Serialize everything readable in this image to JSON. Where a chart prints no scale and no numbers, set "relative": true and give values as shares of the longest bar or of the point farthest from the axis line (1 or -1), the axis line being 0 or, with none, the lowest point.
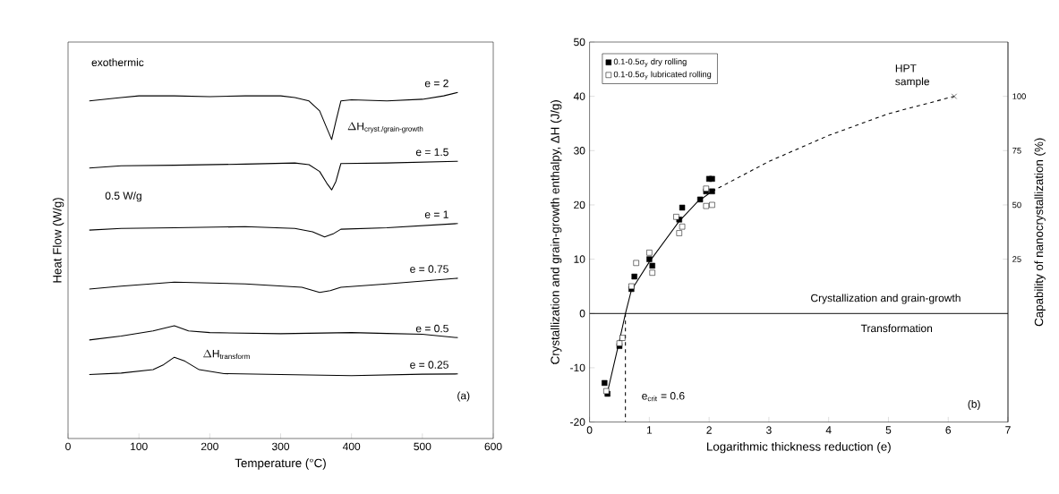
{
  "chart_data": [
    {
      "type": "line",
      "relative": true,
      "xlabel": "Temperature (°C)",
      "ylabel": "Heat Flow (W/g)",
      "xlim": [
        0,
        600
      ],
      "xticks": [
        0,
        100,
        200,
        300,
        400,
        500,
        600
      ],
      "annotations": [
        "exothermic",
        "0.5 W/g",
        "\\Delta\\text{H}_{\\text{cryst./grain-growth}}",
        "\\Delta\\text{H}_{\\text{transform}}",
        "(a)"
      ],
      "series": [
        {
          "name": "e = 2",
          "color": "#000000",
          "x": [
            30,
            75,
            100,
            150,
            200,
            250,
            300,
            320,
            340,
            355,
            365,
            372,
            378,
            385,
            400,
            450,
            500,
            530,
            550
          ],
          "values": [
            0.97,
            0.982,
            0.988,
            0.988,
            0.985,
            0.988,
            0.988,
            0.982,
            0.97,
            0.935,
            0.875,
            0.834,
            0.899,
            0.97,
            0.974,
            0.97,
            0.976,
            0.988,
            1.0
          ]
        },
        {
          "name": "e = 1.5",
          "color": "#000000",
          "x": [
            30,
            75,
            150,
            250,
            320,
            340,
            355,
            365,
            372,
            378,
            385,
            450,
            550
          ],
          "values": [
            0.733,
            0.741,
            0.743,
            0.747,
            0.751,
            0.745,
            0.721,
            0.68,
            0.656,
            0.686,
            0.749,
            0.751,
            0.757
          ]
        },
        {
          "name": "e = 1",
          "color": "#000000",
          "x": [
            30,
            75,
            150,
            250,
            320,
            345,
            362,
            375,
            385,
            450,
            550
          ],
          "values": [
            0.514,
            0.52,
            0.522,
            0.526,
            0.52,
            0.508,
            0.49,
            0.502,
            0.517,
            0.522,
            0.537
          ]
        },
        {
          "name": "e = 0.75",
          "color": "#000000",
          "x": [
            30,
            75,
            150,
            250,
            330,
            355,
            370,
            385,
            450,
            550
          ],
          "values": [
            0.306,
            0.316,
            0.33,
            0.324,
            0.312,
            0.294,
            0.3,
            0.312,
            0.324,
            0.344
          ]
        },
        {
          "name": "e = 0.5",
          "color": "#000000",
          "x": [
            30,
            75,
            120,
            150,
            170,
            200,
            300,
            400,
            450,
            500,
            550
          ],
          "values": [
            0.126,
            0.14,
            0.158,
            0.176,
            0.158,
            0.152,
            0.148,
            0.152,
            0.149,
            0.146,
            0.134
          ]
        },
        {
          "name": "e = 0.25",
          "color": "#000000",
          "x": [
            30,
            75,
            120,
            135,
            150,
            165,
            185,
            220,
            300,
            400,
            500,
            550
          ],
          "values": [
            0.004,
            0.009,
            0.021,
            0.039,
            0.065,
            0.051,
            0.021,
            0.007,
            0.004,
            0.0,
            0.005,
            0.006
          ]
        }
      ]
    },
    {
      "type": "scatter",
      "xlabel": "Logarithmic thickness reduction (e)",
      "ylabel": "Crystallization and grain-growth enthalpy, ΔH (J/g)",
      "y2label": "Capability of nanocrystallization (%)",
      "xlim": [
        0,
        7
      ],
      "xticks": [
        0,
        1,
        2,
        3,
        4,
        5,
        6,
        7
      ],
      "ylim": [
        -20,
        50
      ],
      "yticks": [
        -20,
        -10,
        0,
        10,
        20,
        30,
        40,
        50
      ],
      "y2lim": [
        -50,
        125
      ],
      "y2ticks": [
        25,
        50,
        75,
        100
      ],
      "legend": "top left",
      "annotations": [
        {
          "text": "HPT sample",
          "x": 6.1,
          "y": 40
        },
        "Crystallization and grain-growth",
        "Transformation",
        "(b)"
      ],
      "ref_lines": [
        {
          "axis": "y",
          "value": 0
        },
        {
          "axis": "x",
          "value": 0.6,
          "label": "e$_{crit}$ = 0.6",
          "line_style": "dashed"
        }
      ],
      "series": [
        {
          "name": "0.1-0.5σ$_{y}$ dry rolling",
          "color": "#000000",
          "marker": "square",
          "x": [
            0.25,
            0.3,
            0.5,
            0.55,
            0.75,
            0.7,
            1.0,
            1.05,
            1.5,
            1.55,
            1.85,
            1.95,
            2.0,
            2.05,
            2.05
          ],
          "values": [
            -12.8,
            -14.8,
            -6,
            null,
            6.8,
            4.5,
            10,
            8.8,
            17.3,
            19.5,
            21,
            22.5,
            24.8,
            24.8,
            22.5
          ]
        },
        {
          "name": "0.1-0.5σ$_{y}$ lubricated rolling",
          "color": "#ffffff",
          "marker": "square",
          "x": [
            0.28,
            0.5,
            0.55,
            0.78,
            0.7,
            1.0,
            1.05,
            1.45,
            1.5,
            1.55,
            1.95,
            2.05,
            1.95
          ],
          "values": [
            -14.3,
            -5.5,
            -4.5,
            9.3,
            5.0,
            11.2,
            7.5,
            17.8,
            14.8,
            16,
            19.8,
            20,
            23
          ]
        },
        {
          "type": "line",
          "color": "#000000",
          "marker": "none",
          "line_style": "solid",
          "x": [
            0.3,
            0.5,
            0.6,
            0.7,
            1.0,
            1.5,
            1.8,
            2.05
          ],
          "values": [
            -14.5,
            -5,
            0,
            4.3,
            9.5,
            17,
            20.5,
            22.5
          ]
        },
        {
          "type": "line",
          "color": "#000000",
          "marker": "none",
          "line_style": "dashed",
          "x": [
            2.05,
            3,
            4,
            5,
            6.1
          ],
          "values": [
            22.5,
            28,
            32.8,
            36.8,
            40
          ]
        },
        {
          "color": "#000000",
          "marker": "cross",
          "x": [
            6.1
          ],
          "values": [
            40
          ]
        }
      ]
    }
  ]
}
